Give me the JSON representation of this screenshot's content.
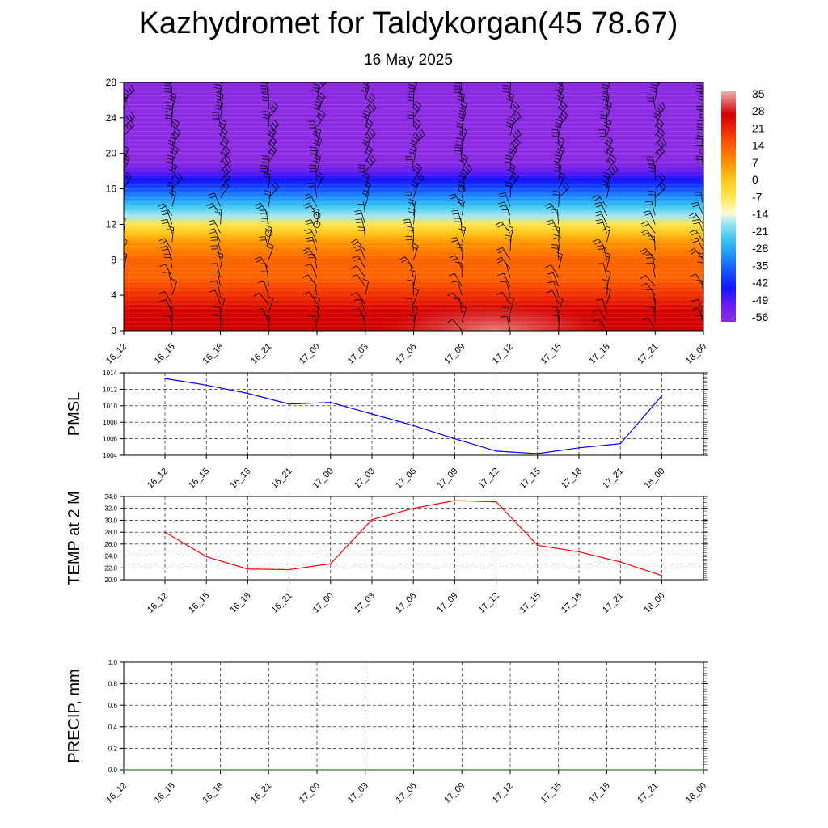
{
  "title": "Kazhydromet for Taldykorgan(45 78.67)",
  "subtitle": "16 May 2025",
  "chart_data": [
    {
      "type": "heatmap",
      "xlabel": "",
      "ylabel": "",
      "x_ticks": [
        "16_12",
        "16_15",
        "16_18",
        "16_21",
        "17_00",
        "17_03",
        "17_06",
        "17_09",
        "17_12",
        "17_15",
        "17_18",
        "17_21",
        "18_00"
      ],
      "y_ticks": [
        0,
        4,
        8,
        12,
        16,
        20,
        24,
        28
      ],
      "ylim": [
        0,
        28
      ],
      "colorbar_labels": [
        35,
        28,
        21,
        14,
        7,
        0,
        -7,
        -14,
        -21,
        -28,
        -35,
        -42,
        -49,
        -56
      ],
      "colorbar_range": [
        -60,
        38
      ],
      "temperature_profile": [
        {
          "level": 0,
          "value": 33
        },
        {
          "level": 2,
          "value": 30
        },
        {
          "level": 4,
          "value": 26
        },
        {
          "level": 6,
          "value": 21
        },
        {
          "level": 8,
          "value": 15
        },
        {
          "level": 10,
          "value": 8
        },
        {
          "level": 11,
          "value": 2
        },
        {
          "level": 12,
          "value": -5
        },
        {
          "level": 13,
          "value": -14
        },
        {
          "level": 14,
          "value": -21
        },
        {
          "level": 15,
          "value": -28
        },
        {
          "level": 16,
          "value": -35
        },
        {
          "level": 17,
          "value": -42
        },
        {
          "level": 18,
          "value": -49
        },
        {
          "level": 19,
          "value": -55
        },
        {
          "level": 20,
          "value": -58
        },
        {
          "level": 22,
          "value": -56
        },
        {
          "level": 24,
          "value": -58
        },
        {
          "level": 28,
          "value": -58
        }
      ],
      "overlay": "wind barbs"
    },
    {
      "type": "line",
      "ylabel": "PMSL",
      "categories": [
        "16_12",
        "16_15",
        "16_18",
        "16_21",
        "17_00",
        "17_03",
        "17_06",
        "17_09",
        "17_12",
        "17_15",
        "17_18",
        "17_21",
        "18_00"
      ],
      "values": [
        1013.3,
        1012.5,
        1011.5,
        1010.2,
        1010.4,
        1009.0,
        1007.6,
        1006.0,
        1004.5,
        1004.2,
        1004.9,
        1005.4,
        1011.2
      ],
      "ylim": [
        1004,
        1014
      ],
      "y_ticks": [
        "1004",
        "1006",
        "1008",
        "1010",
        "1012",
        "1014"
      ],
      "color": "#0000ff",
      "grid": true
    },
    {
      "type": "line",
      "ylabel": "TEMP at 2 M",
      "categories": [
        "16_12",
        "16_15",
        "16_18",
        "16_21",
        "17_00",
        "17_03",
        "17_06",
        "17_09",
        "17_12",
        "17_15",
        "17_18",
        "17_21",
        "18_00"
      ],
      "values": [
        28.0,
        23.9,
        21.8,
        21.7,
        22.7,
        30.1,
        32.0,
        33.3,
        33.1,
        25.8,
        24.7,
        23.0,
        20.7
      ],
      "ylim": [
        20,
        34
      ],
      "y_ticks": [
        "20.0",
        "22.0",
        "24.0",
        "26.0",
        "28.0",
        "30.0",
        "32.0",
        "34.0"
      ],
      "color": "#ff0000",
      "grid": true
    },
    {
      "type": "line",
      "ylabel": "PRECIP, mm",
      "categories": [
        "16_12",
        "16_15",
        "16_18",
        "16_21",
        "17_00",
        "17_03",
        "17_06",
        "17_09",
        "17_12",
        "17_15",
        "17_18",
        "17_21",
        "18_00"
      ],
      "values": [
        0,
        0,
        0,
        0,
        0,
        0,
        0,
        0,
        0,
        0,
        0,
        0,
        0
      ],
      "ylim": [
        0,
        1
      ],
      "y_ticks": [
        "0.0",
        "0.2",
        "0.4",
        "0.6",
        "0.8",
        "1.0"
      ],
      "color": "#2e7d32",
      "grid": true
    }
  ]
}
